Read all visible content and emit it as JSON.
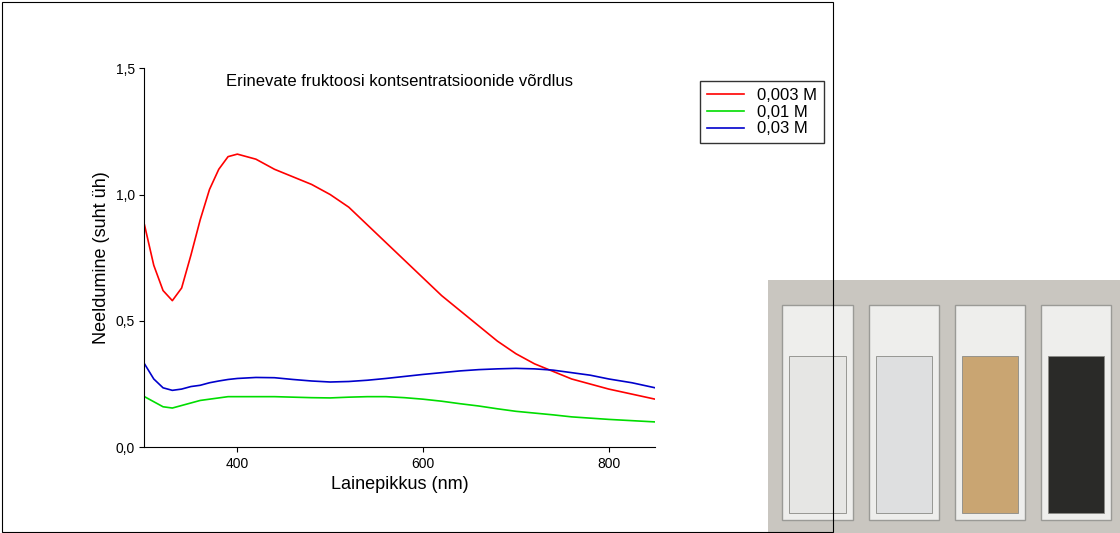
{
  "chart_data": {
    "type": "line",
    "title": "Erinevate fruktoosi kontsentratsioonide võrdlus",
    "x_label": "Lainepikkus (nm)",
    "y_label": "Neeldumine (suht üh)",
    "x": [
      300,
      310,
      320,
      330,
      340,
      350,
      360,
      370,
      380,
      390,
      400,
      420,
      440,
      460,
      480,
      500,
      520,
      540,
      560,
      580,
      600,
      620,
      640,
      660,
      680,
      700,
      720,
      740,
      760,
      780,
      800,
      825,
      850
    ],
    "series": [
      {
        "name": "0,003 M",
        "color": "#ff0000",
        "values": [
          0.88,
          0.72,
          0.62,
          0.58,
          0.63,
          0.76,
          0.9,
          1.02,
          1.1,
          1.15,
          1.16,
          1.14,
          1.1,
          1.07,
          1.04,
          1.0,
          0.95,
          0.88,
          0.81,
          0.74,
          0.67,
          0.6,
          0.54,
          0.48,
          0.42,
          0.37,
          0.33,
          0.3,
          0.27,
          0.25,
          0.23,
          0.21,
          0.19
        ]
      },
      {
        "name": "0,01 M",
        "color": "#00dd00",
        "values": [
          0.2,
          0.18,
          0.16,
          0.155,
          0.165,
          0.175,
          0.185,
          0.19,
          0.195,
          0.2,
          0.2,
          0.2,
          0.2,
          0.198,
          0.196,
          0.195,
          0.198,
          0.2,
          0.2,
          0.196,
          0.19,
          0.182,
          0.172,
          0.163,
          0.152,
          0.142,
          0.135,
          0.128,
          0.12,
          0.115,
          0.11,
          0.105,
          0.1
        ]
      },
      {
        "name": "0,03 M",
        "color": "#0000cc",
        "values": [
          0.33,
          0.27,
          0.235,
          0.225,
          0.23,
          0.24,
          0.245,
          0.255,
          0.262,
          0.268,
          0.272,
          0.276,
          0.275,
          0.268,
          0.262,
          0.258,
          0.26,
          0.265,
          0.272,
          0.28,
          0.288,
          0.295,
          0.302,
          0.307,
          0.31,
          0.312,
          0.31,
          0.305,
          0.295,
          0.285,
          0.27,
          0.255,
          0.235
        ]
      }
    ],
    "xlim": [
      300,
      850
    ],
    "xticks": [
      400,
      600,
      800
    ],
    "ylim": [
      0,
      1.5
    ],
    "yticks": [
      {
        "value": 0,
        "label": "0,0"
      },
      {
        "value": 0.5,
        "label": "0,5"
      },
      {
        "value": 1.0,
        "label": "1,0"
      },
      {
        "value": 1.5,
        "label": "1,5"
      }
    ],
    "legend": "upper right",
    "grid": false
  }
}
